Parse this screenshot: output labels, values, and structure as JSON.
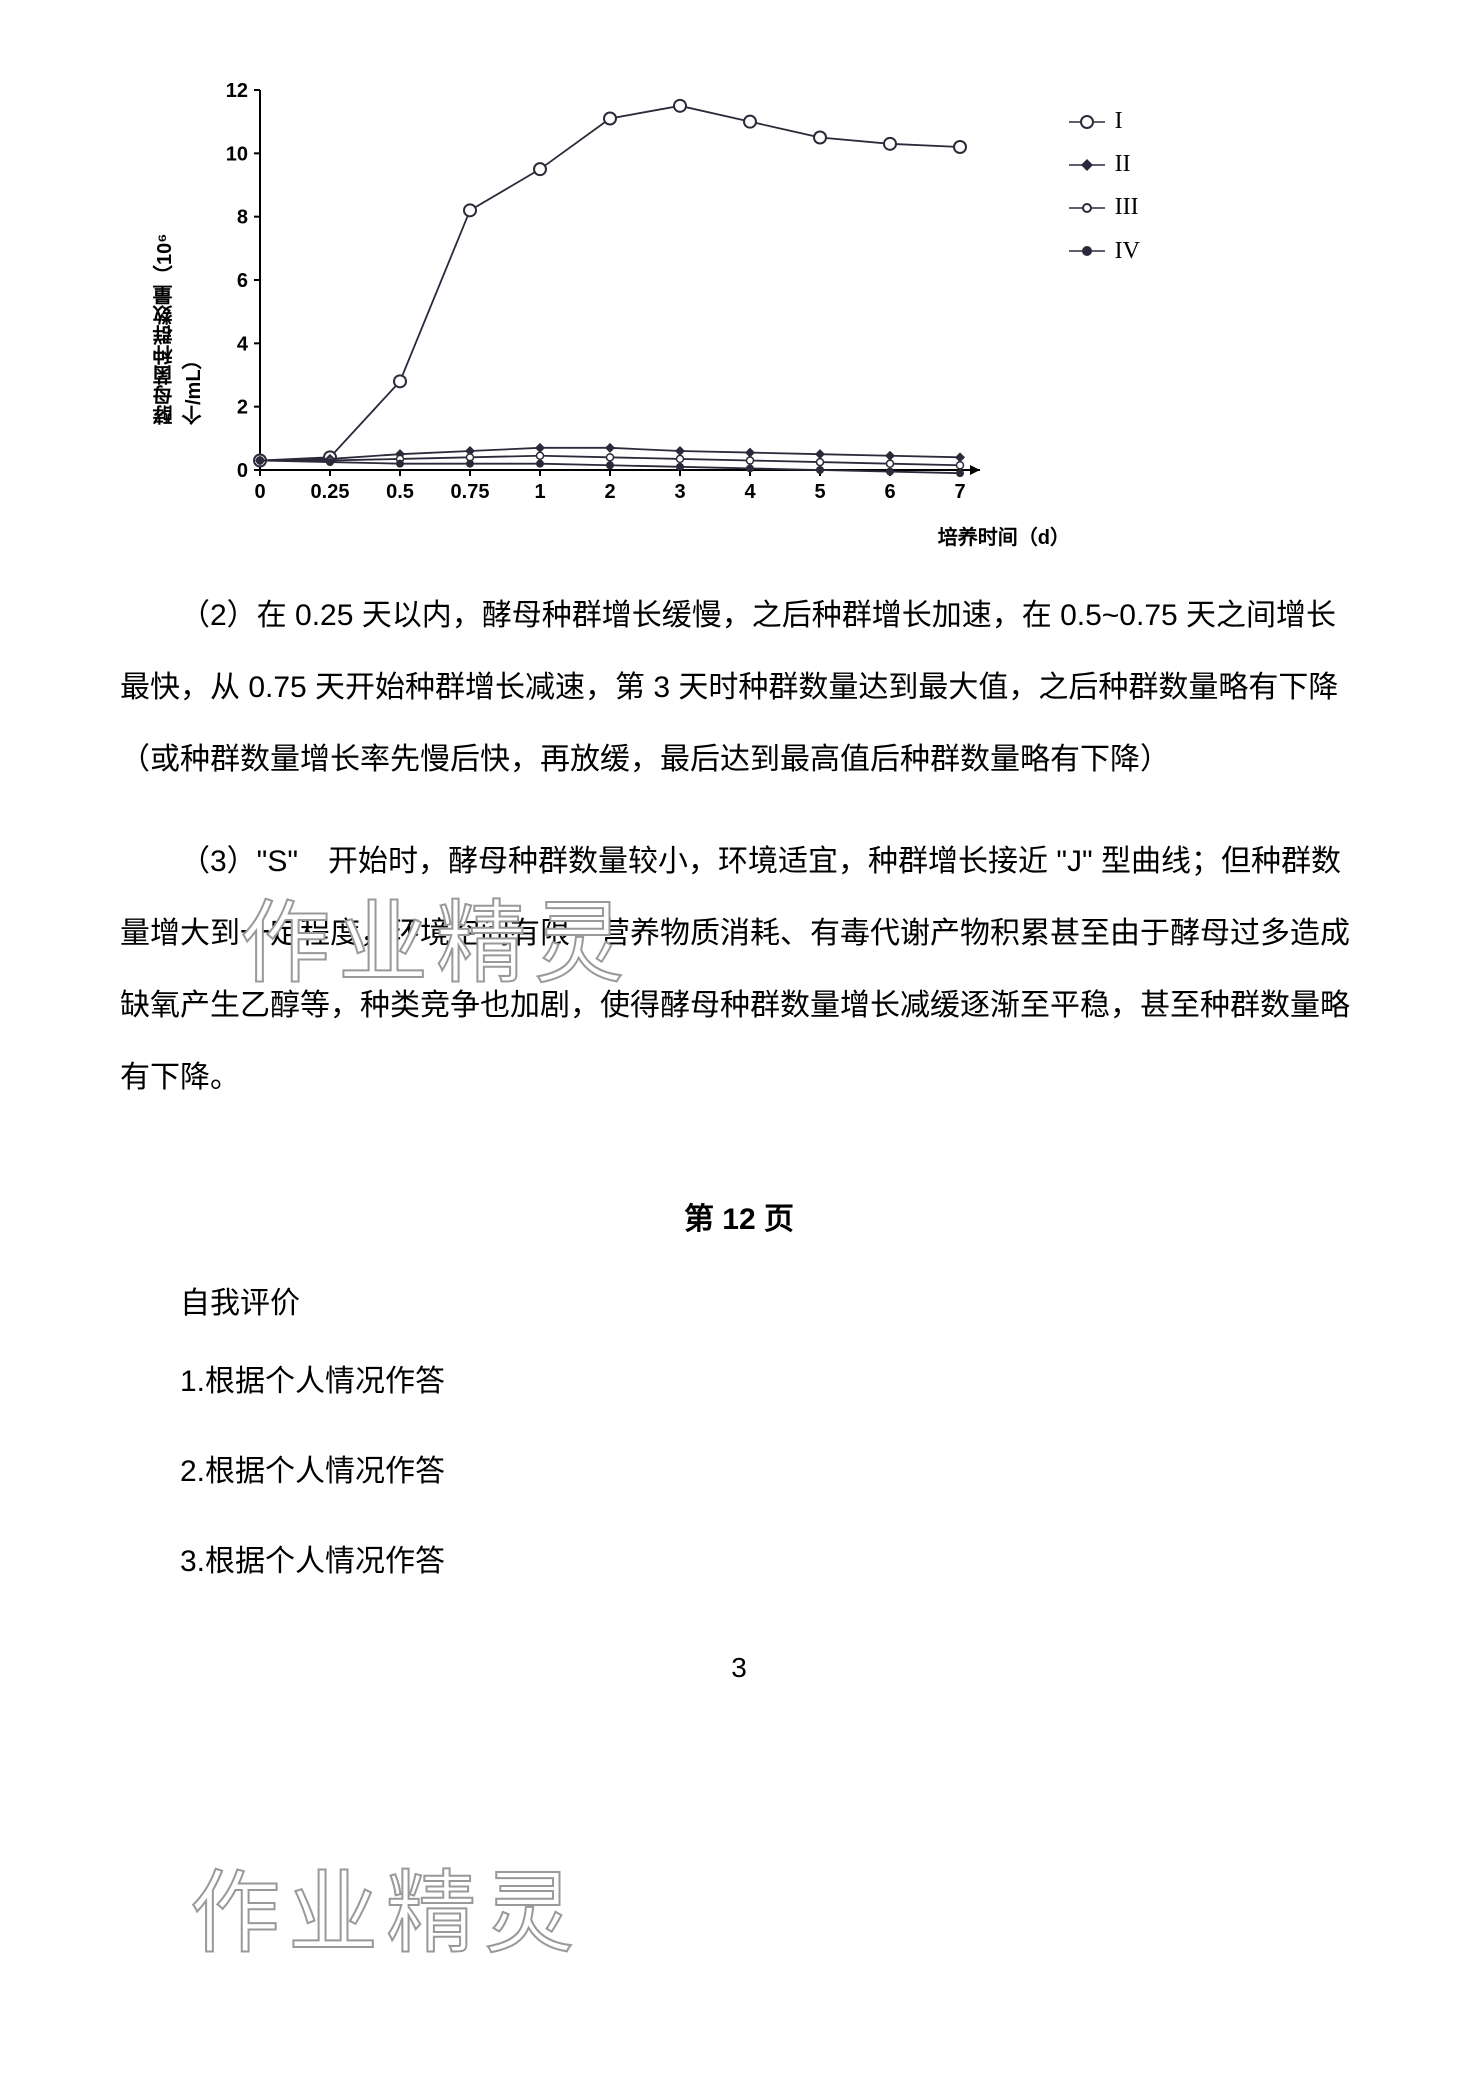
{
  "chart": {
    "type": "line",
    "y_axis_label": "酵母菌种群数量（10⁶个/mL）",
    "x_axis_label": "培养时间（d）",
    "y_ticks": [
      0,
      2,
      4,
      6,
      8,
      10,
      12
    ],
    "x_ticks": [
      "0",
      "0.25",
      "0.5",
      "0.75",
      "1",
      "2",
      "3",
      "4",
      "5",
      "6",
      "7"
    ],
    "x_positions": [
      0,
      0.25,
      0.5,
      0.75,
      1,
      2,
      3,
      4,
      5,
      6,
      7
    ],
    "ylim": [
      0,
      12
    ],
    "background_color": "#ffffff",
    "axis_color": "#000000",
    "line_color": "#2a2a3a",
    "tick_fontsize": 20,
    "label_fontsize": 20,
    "series": [
      {
        "name": "I",
        "marker": "open-circle",
        "marker_color": "#ffffff",
        "marker_stroke": "#2a2a3a",
        "values": [
          0.3,
          0.4,
          2.8,
          8.2,
          9.5,
          11.1,
          11.5,
          11.0,
          10.5,
          10.3,
          10.2
        ]
      },
      {
        "name": "II",
        "marker": "filled-diamond",
        "marker_color": "#2a2a3a",
        "marker_stroke": "#2a2a3a",
        "values": [
          0.3,
          0.35,
          0.5,
          0.6,
          0.7,
          0.7,
          0.6,
          0.55,
          0.5,
          0.45,
          0.4
        ]
      },
      {
        "name": "III",
        "marker": "open-circle-small",
        "marker_color": "#ffffff",
        "marker_stroke": "#2a2a3a",
        "values": [
          0.3,
          0.3,
          0.35,
          0.4,
          0.45,
          0.4,
          0.35,
          0.3,
          0.25,
          0.2,
          0.15
        ]
      },
      {
        "name": "IV",
        "marker": "filled-circle",
        "marker_color": "#2a2a3a",
        "marker_stroke": "#2a2a3a",
        "values": [
          0.3,
          0.25,
          0.2,
          0.2,
          0.2,
          0.15,
          0.1,
          0.05,
          0.0,
          -0.05,
          -0.1
        ]
      }
    ],
    "legend_labels": [
      "I",
      "II",
      "III",
      "IV"
    ]
  },
  "paragraphs": {
    "p2": "（2）在 0.25 天以内，酵母种群增长缓慢，之后种群增长加速，在 0.5~0.75 天之间增长最快，从 0.75 天开始种群增长减速，第 3 天时种群数量达到最大值，之后种群数量略有下降（或种群数量增长率先慢后快，再放缓，最后达到最高值后种群数量略有下降）",
    "p3": "（3）\"S\"　开始时，酵母种群数量较小，环境适宜，种群增长接近 \"J\" 型曲线；但种群数量增大到一定程度，环境空间有限，营养物质消耗、有毒代谢产物积累甚至由于酵母过多造成缺氧产生乙醇等，种类竞争也加剧，使得酵母种群数量增长减缓逐渐至平稳，甚至种群数量略有下降。"
  },
  "page_section": {
    "title": "第 12 页",
    "self_eval_heading": "自我评价",
    "items": [
      "1.根据个人情况作答",
      "2.根据个人情况作答",
      "3.根据个人情况作答"
    ]
  },
  "footer_page_number": "3",
  "watermark_text": "作业精灵"
}
